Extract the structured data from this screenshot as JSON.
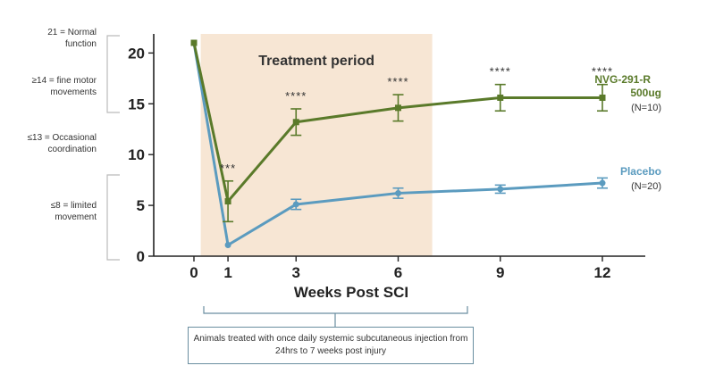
{
  "chart_data": {
    "type": "line",
    "title": "Treatment period",
    "xlabel": "Weeks Post SCI",
    "ylabel": "",
    "categories": [
      "0",
      "1",
      "3",
      "6",
      "9",
      "12"
    ],
    "ylim": [
      0,
      21
    ],
    "yticks": [
      "0",
      "5",
      "10",
      "15",
      "20"
    ],
    "shaded_period_label": "Treatment period",
    "series": [
      {
        "name": "NVG-291-R",
        "name_line2": "500ug",
        "n_label": "(N=10)",
        "color": "#5a7a2a",
        "values": [
          21,
          5.4,
          13.2,
          14.6,
          15.6,
          15.6
        ],
        "errors": [
          0,
          2.0,
          1.3,
          1.3,
          1.3,
          1.3
        ],
        "annotations": [
          "",
          "***",
          "****",
          "****",
          "****",
          "****"
        ]
      },
      {
        "name": "Placebo",
        "n_label": "(N=20)",
        "color": "#5b9bbf",
        "values": [
          21,
          1.1,
          5.1,
          6.2,
          6.6,
          7.2
        ],
        "errors": [
          0,
          0,
          0.5,
          0.5,
          0.4,
          0.5
        ]
      }
    ],
    "side_notes": [
      "21 = Normal function",
      "≥14 = fine motor movements",
      "≤13 = Occasional coordination",
      "≤8 = limited movement"
    ],
    "footnote": "Animals treated with once daily systemic subcutaneous injection from 24hrs to 7 weeks post injury"
  }
}
